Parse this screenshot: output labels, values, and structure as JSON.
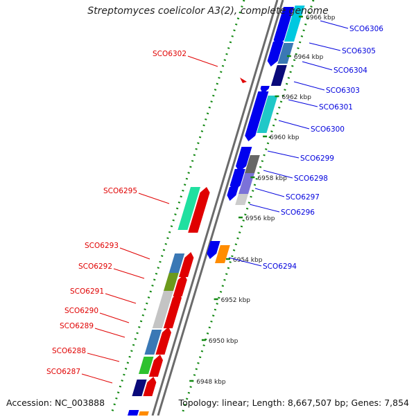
{
  "title": "Streptomyces coelicolor A3(2), complete genome",
  "footer": {
    "accession": "Accession: NC_003888",
    "summary": "Topology: linear; Length: 8,667,507 bp; Genes: 7,854"
  },
  "colors": {
    "forward_label": "#e00000",
    "reverse_label": "#0000dd",
    "backbone": "#888888",
    "tick_dots": "#118811"
  },
  "axis_ticks": [
    "6948 kbp",
    "6950 kbp",
    "6952 kbp",
    "6954 kbp",
    "6956 kbp",
    "6958 kbp",
    "6960 kbp",
    "6962 kbp",
    "6964 kbp",
    "6966 kbp"
  ],
  "genes_forward": [
    {
      "name": "SCO6287",
      "color": "#e00000"
    },
    {
      "name": "SCO6288",
      "color": "#e00000"
    },
    {
      "name": "SCO6289",
      "color": "#e00000"
    },
    {
      "name": "SCO6290",
      "color": "#e00000"
    },
    {
      "name": "SCO6291",
      "color": "#e00000"
    },
    {
      "name": "SCO6292",
      "color": "#e00000"
    },
    {
      "name": "SCO6293",
      "color": "#e00000"
    },
    {
      "name": "SCO6295",
      "color": "#e00000"
    },
    {
      "name": "SCO6302",
      "color": "#e00000"
    }
  ],
  "genes_reverse": [
    {
      "name": "SCO6294",
      "color": "#0000dd"
    },
    {
      "name": "SCO6296",
      "color": "#0000dd"
    },
    {
      "name": "SCO6297",
      "color": "#0000dd"
    },
    {
      "name": "SCO6298",
      "color": "#0000dd"
    },
    {
      "name": "SCO6299",
      "color": "#0000dd"
    },
    {
      "name": "SCO6300",
      "color": "#0000dd"
    },
    {
      "name": "SCO6301",
      "color": "#0000dd"
    },
    {
      "name": "SCO6303",
      "color": "#0000dd"
    },
    {
      "name": "SCO6304",
      "color": "#0000dd"
    },
    {
      "name": "SCO6305",
      "color": "#0000dd"
    },
    {
      "name": "SCO6306",
      "color": "#0000dd"
    }
  ]
}
